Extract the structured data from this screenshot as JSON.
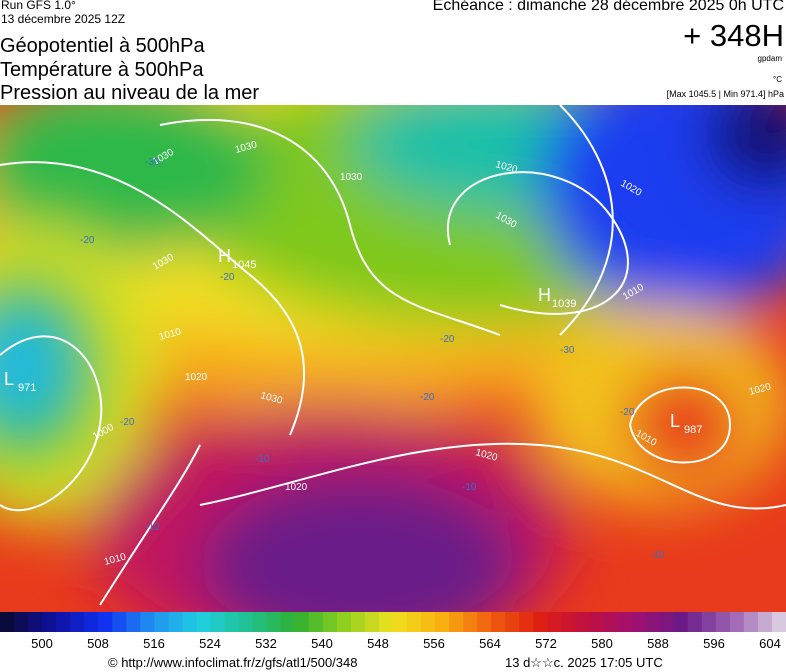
{
  "header": {
    "run": "Run GFS 1.0°",
    "run_date": "13 décembre 2025 12Z",
    "valid": "Echéance : dimanche 28 décembre 2025 0h UTC",
    "lead": "+ 348H",
    "unit_geo": "gpdam",
    "unit_temp": "°C",
    "extremes": "[Max 1045.5 | Min 971.4] hPa",
    "title_lines": [
      "Géopotentiel à 500hPa",
      "Température à 500hPa",
      "Pression au niveau de la mer"
    ]
  },
  "map": {
    "centers": [
      {
        "letter": "H",
        "value": "1045"
      },
      {
        "letter": "H",
        "value": "1039"
      },
      {
        "letter": "L",
        "value": "971"
      },
      {
        "letter": "L",
        "value": "987"
      }
    ],
    "isobar_labels": [
      "1030",
      "1030",
      "1030",
      "1020",
      "1030",
      "1030",
      "1010",
      "1020",
      "1030",
      "1020",
      "1000",
      "1010",
      "1020",
      "1020",
      "1010",
      "1010",
      "1020"
    ],
    "isotherm_labels": [
      "-30",
      "-20",
      "-20",
      "-20",
      "-20",
      "-20",
      "-30",
      "-20",
      "-10",
      "-10",
      "-10",
      "-10"
    ]
  },
  "colorbar": {
    "labels": [
      "500",
      "508",
      "516",
      "524",
      "532",
      "540",
      "548",
      "556",
      "564",
      "572",
      "580",
      "588",
      "596",
      "604"
    ]
  },
  "footer": {
    "url": "© http://www.infoclimat.fr/z/gfs/atl1/500/348",
    "generated": "13 d☆☆c. 2025 17:05 UTC"
  }
}
